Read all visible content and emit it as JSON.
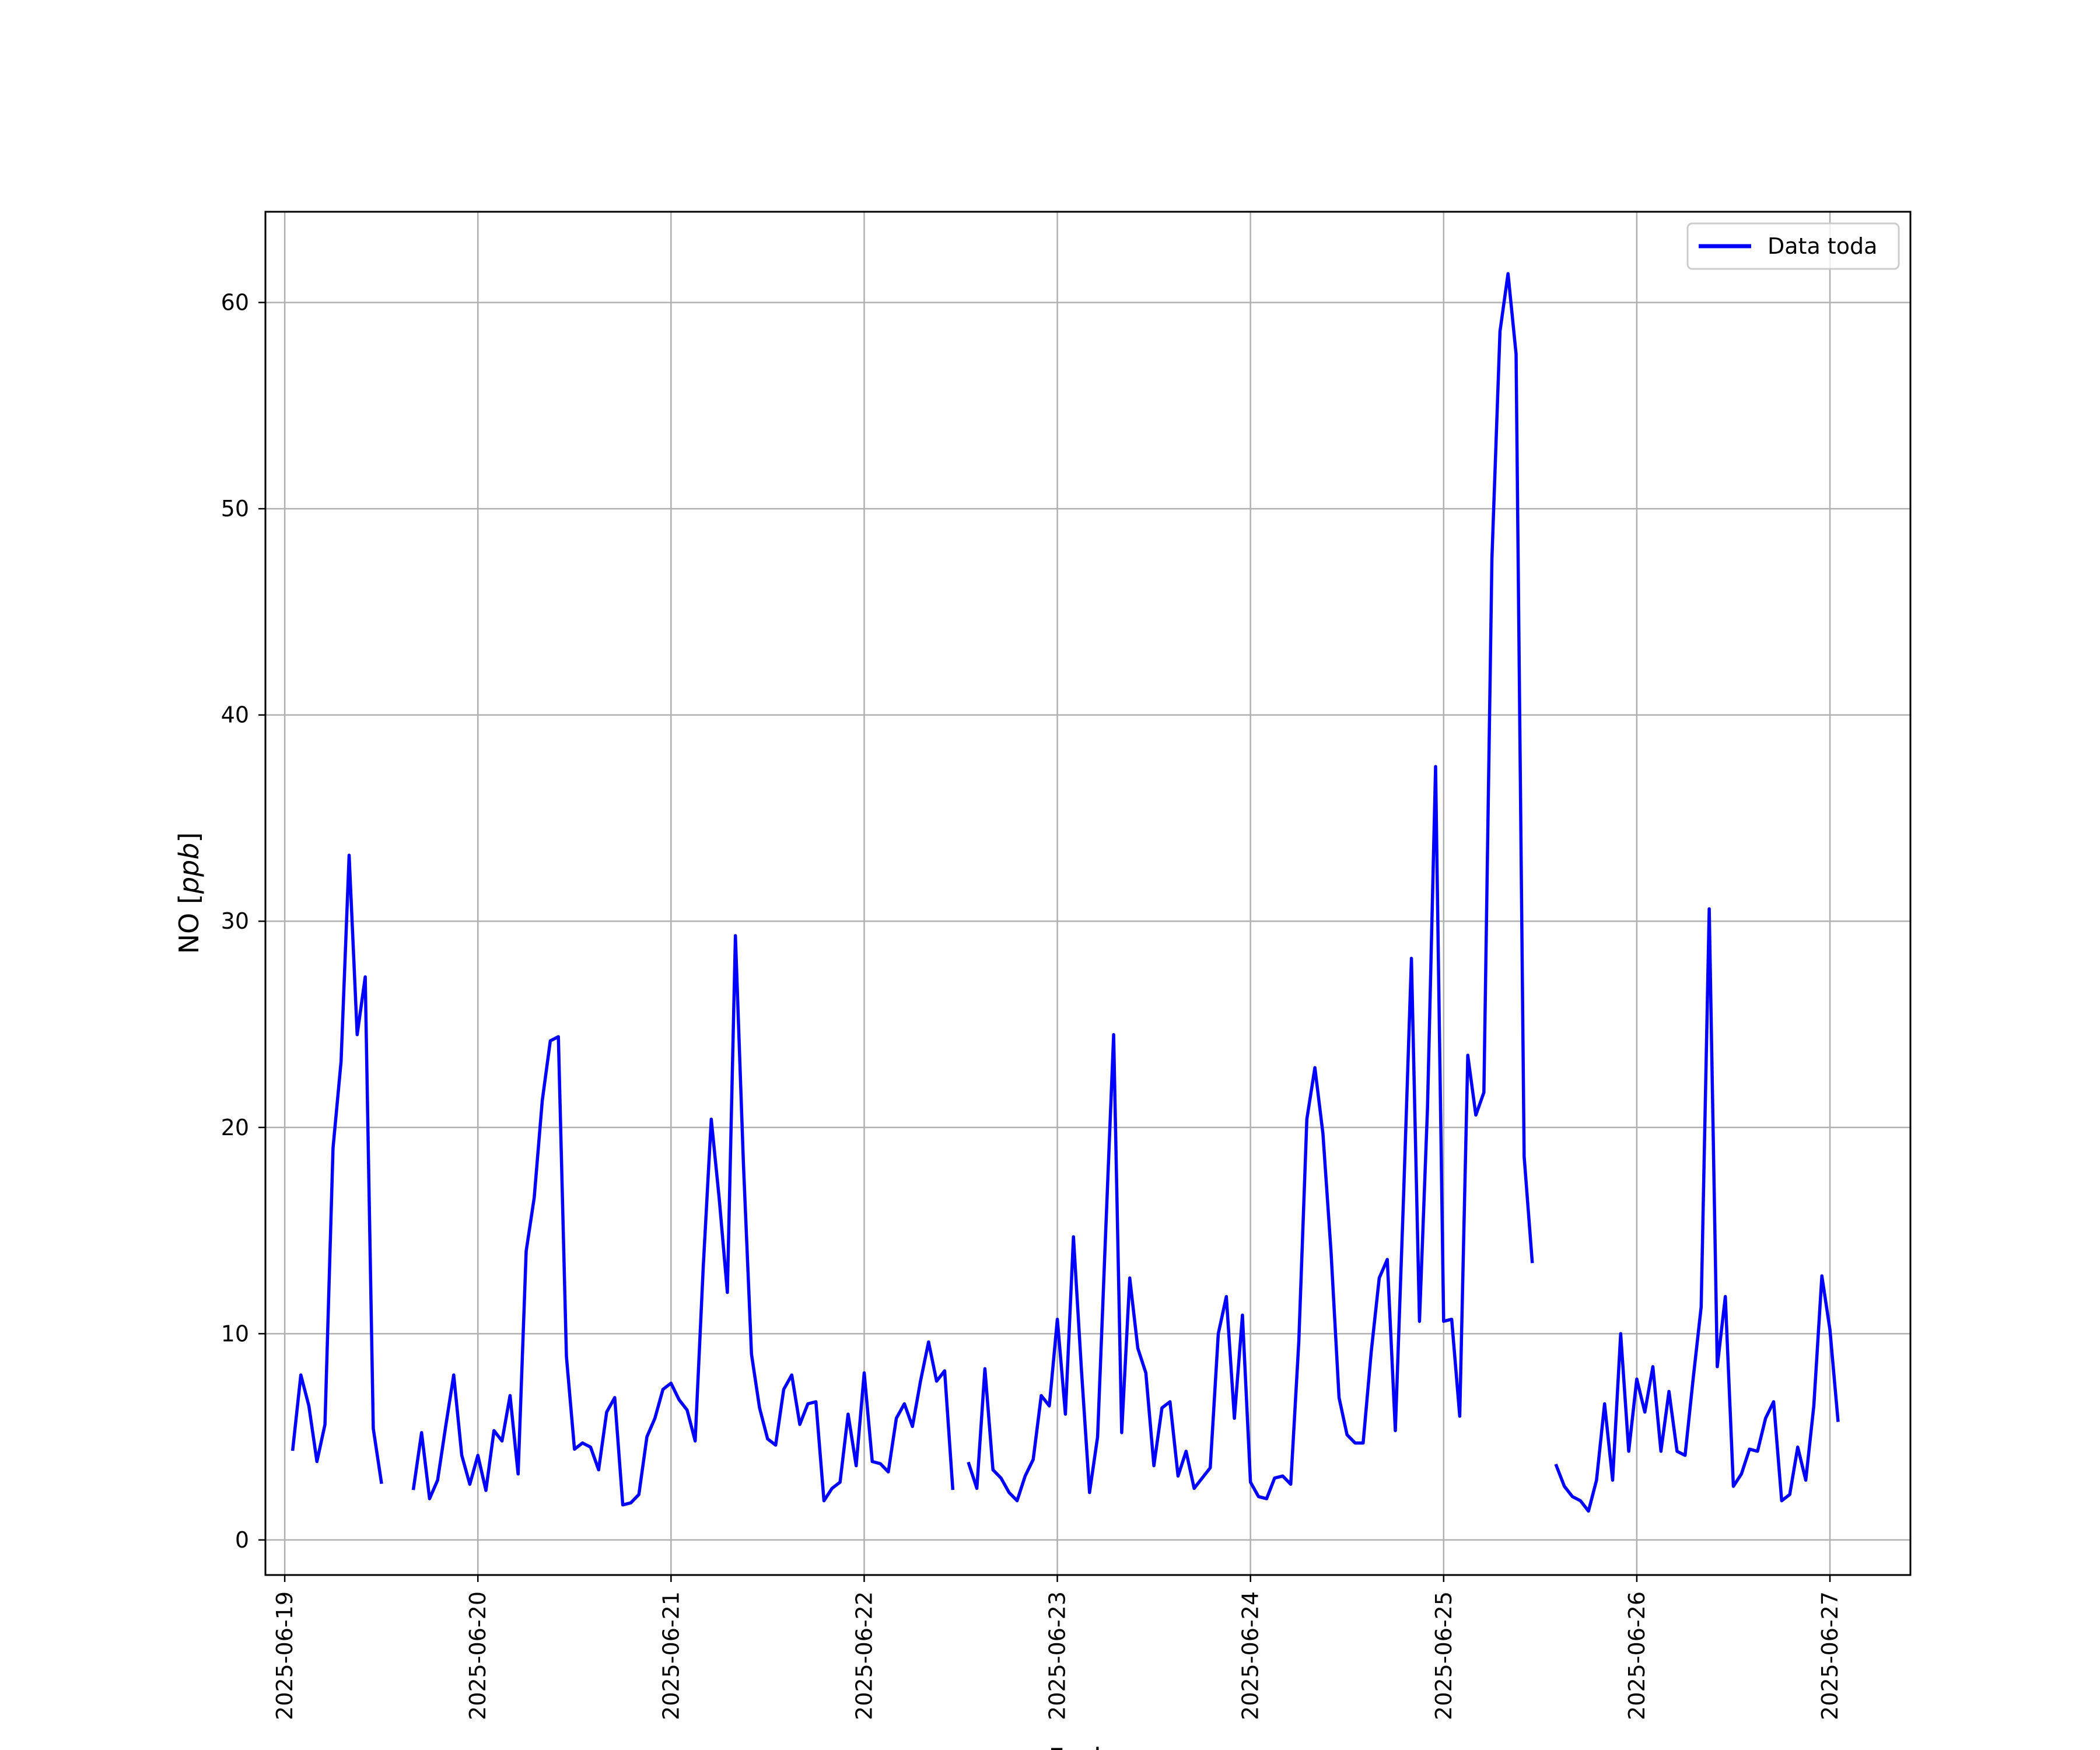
{
  "chart_data": {
    "type": "line",
    "xlabel": "Fecha",
    "ylabel_main": "NO",
    "ylabel_unit": "ppb",
    "ylim": [
      -1.7,
      64.4
    ],
    "xlim": [
      "2025-06-18T21:36",
      "2025-06-27T10:00"
    ],
    "yticks": [
      0,
      10,
      20,
      30,
      40,
      50,
      60
    ],
    "xticks": [
      "2025-06-19",
      "2025-06-20",
      "2025-06-21",
      "2025-06-22",
      "2025-06-23",
      "2025-06-24",
      "2025-06-25",
      "2025-06-26",
      "2025-06-27"
    ],
    "grid": true,
    "legend_position": "upper-right",
    "color": "#0000ff",
    "series": [
      {
        "name": "Data toda",
        "points": [
          [
            "2025-06-19T01:00",
            4.4
          ],
          [
            "2025-06-19T02:00",
            8.0
          ],
          [
            "2025-06-19T03:00",
            6.5
          ],
          [
            "2025-06-19T04:00",
            3.8
          ],
          [
            "2025-06-19T05:00",
            5.6
          ],
          [
            "2025-06-19T06:00",
            19.0
          ],
          [
            "2025-06-19T07:00",
            23.2
          ],
          [
            "2025-06-19T08:00",
            33.2
          ],
          [
            "2025-06-19T09:00",
            24.5
          ],
          [
            "2025-06-19T10:00",
            27.3
          ],
          [
            "2025-06-19T11:00",
            5.4
          ],
          [
            "2025-06-19T12:00",
            2.8
          ],
          [
            "2025-06-19T13:00",
            null
          ],
          [
            "2025-06-19T14:00",
            null
          ],
          [
            "2025-06-19T15:00",
            null
          ],
          [
            "2025-06-19T16:00",
            2.5
          ],
          [
            "2025-06-19T17:00",
            5.2
          ],
          [
            "2025-06-19T18:00",
            2.0
          ],
          [
            "2025-06-19T19:00",
            2.9
          ],
          [
            "2025-06-19T20:00",
            5.5
          ],
          [
            "2025-06-19T21:00",
            8.0
          ],
          [
            "2025-06-19T22:00",
            4.1
          ],
          [
            "2025-06-19T23:00",
            2.7
          ],
          [
            "2025-06-20T00:00",
            4.1
          ],
          [
            "2025-06-20T01:00",
            2.4
          ],
          [
            "2025-06-20T02:00",
            5.3
          ],
          [
            "2025-06-20T03:00",
            4.8
          ],
          [
            "2025-06-20T04:00",
            7.0
          ],
          [
            "2025-06-20T05:00",
            3.2
          ],
          [
            "2025-06-20T06:00",
            14.0
          ],
          [
            "2025-06-20T07:00",
            16.6
          ],
          [
            "2025-06-20T08:00",
            21.3
          ],
          [
            "2025-06-20T09:00",
            24.2
          ],
          [
            "2025-06-20T10:00",
            24.4
          ],
          [
            "2025-06-20T11:00",
            8.9
          ],
          [
            "2025-06-20T12:00",
            4.4
          ],
          [
            "2025-06-20T13:00",
            4.7
          ],
          [
            "2025-06-20T14:00",
            4.5
          ],
          [
            "2025-06-20T15:00",
            3.4
          ],
          [
            "2025-06-20T16:00",
            6.2
          ],
          [
            "2025-06-20T17:00",
            6.9
          ],
          [
            "2025-06-20T18:00",
            1.7
          ],
          [
            "2025-06-20T19:00",
            1.8
          ],
          [
            "2025-06-20T20:00",
            2.2
          ],
          [
            "2025-06-20T21:00",
            5.0
          ],
          [
            "2025-06-20T22:00",
            5.9
          ],
          [
            "2025-06-20T23:00",
            7.3
          ],
          [
            "2025-06-21T00:00",
            7.6
          ],
          [
            "2025-06-21T01:00",
            6.8
          ],
          [
            "2025-06-21T02:00",
            6.3
          ],
          [
            "2025-06-21T03:00",
            4.8
          ],
          [
            "2025-06-21T04:00",
            13.2
          ],
          [
            "2025-06-21T05:00",
            20.4
          ],
          [
            "2025-06-21T06:00",
            16.5
          ],
          [
            "2025-06-21T07:00",
            12.0
          ],
          [
            "2025-06-21T08:00",
            29.3
          ],
          [
            "2025-06-21T09:00",
            18.2
          ],
          [
            "2025-06-21T10:00",
            9.0
          ],
          [
            "2025-06-21T11:00",
            6.4
          ],
          [
            "2025-06-21T12:00",
            4.9
          ],
          [
            "2025-06-21T13:00",
            4.6
          ],
          [
            "2025-06-21T14:00",
            7.3
          ],
          [
            "2025-06-21T15:00",
            8.0
          ],
          [
            "2025-06-21T16:00",
            5.6
          ],
          [
            "2025-06-21T17:00",
            6.6
          ],
          [
            "2025-06-21T18:00",
            6.7
          ],
          [
            "2025-06-21T19:00",
            1.9
          ],
          [
            "2025-06-21T20:00",
            2.5
          ],
          [
            "2025-06-21T21:00",
            2.8
          ],
          [
            "2025-06-21T22:00",
            6.1
          ],
          [
            "2025-06-21T23:00",
            3.6
          ],
          [
            "2025-06-22T00:00",
            8.1
          ],
          [
            "2025-06-22T01:00",
            3.8
          ],
          [
            "2025-06-22T02:00",
            3.7
          ],
          [
            "2025-06-22T03:00",
            3.3
          ],
          [
            "2025-06-22T04:00",
            5.9
          ],
          [
            "2025-06-22T05:00",
            6.6
          ],
          [
            "2025-06-22T06:00",
            5.5
          ],
          [
            "2025-06-22T07:00",
            7.7
          ],
          [
            "2025-06-22T08:00",
            9.6
          ],
          [
            "2025-06-22T09:00",
            7.7
          ],
          [
            "2025-06-22T10:00",
            8.2
          ],
          [
            "2025-06-22T11:00",
            2.5
          ],
          [
            "2025-06-22T12:00",
            null
          ],
          [
            "2025-06-22T13:00",
            3.7
          ],
          [
            "2025-06-22T14:00",
            2.5
          ],
          [
            "2025-06-22T15:00",
            8.3
          ],
          [
            "2025-06-22T16:00",
            3.4
          ],
          [
            "2025-06-22T17:00",
            3.0
          ],
          [
            "2025-06-22T18:00",
            2.3
          ],
          [
            "2025-06-22T19:00",
            1.9
          ],
          [
            "2025-06-22T20:00",
            3.1
          ],
          [
            "2025-06-22T21:00",
            3.9
          ],
          [
            "2025-06-22T22:00",
            7.0
          ],
          [
            "2025-06-22T23:00",
            6.5
          ],
          [
            "2025-06-23T00:00",
            10.7
          ],
          [
            "2025-06-23T01:00",
            6.1
          ],
          [
            "2025-06-23T02:00",
            14.7
          ],
          [
            "2025-06-23T03:00",
            8.2
          ],
          [
            "2025-06-23T04:00",
            2.3
          ],
          [
            "2025-06-23T05:00",
            5.0
          ],
          [
            "2025-06-23T06:00",
            14.9
          ],
          [
            "2025-06-23T07:00",
            24.5
          ],
          [
            "2025-06-23T08:00",
            5.2
          ],
          [
            "2025-06-23T09:00",
            12.7
          ],
          [
            "2025-06-23T10:00",
            9.3
          ],
          [
            "2025-06-23T11:00",
            8.1
          ],
          [
            "2025-06-23T12:00",
            3.6
          ],
          [
            "2025-06-23T13:00",
            6.4
          ],
          [
            "2025-06-23T14:00",
            6.7
          ],
          [
            "2025-06-23T15:00",
            3.1
          ],
          [
            "2025-06-23T16:00",
            4.3
          ],
          [
            "2025-06-23T17:00",
            2.5
          ],
          [
            "2025-06-23T18:00",
            3.0
          ],
          [
            "2025-06-23T19:00",
            3.5
          ],
          [
            "2025-06-23T20:00",
            10.0
          ],
          [
            "2025-06-23T21:00",
            11.8
          ],
          [
            "2025-06-23T22:00",
            5.9
          ],
          [
            "2025-06-23T23:00",
            10.9
          ],
          [
            "2025-06-24T00:00",
            2.8
          ],
          [
            "2025-06-24T01:00",
            2.1
          ],
          [
            "2025-06-24T02:00",
            2.0
          ],
          [
            "2025-06-24T03:00",
            3.0
          ],
          [
            "2025-06-24T04:00",
            3.1
          ],
          [
            "2025-06-24T05:00",
            2.7
          ],
          [
            "2025-06-24T06:00",
            9.6
          ],
          [
            "2025-06-24T07:00",
            20.4
          ],
          [
            "2025-06-24T08:00",
            22.9
          ],
          [
            "2025-06-24T09:00",
            19.7
          ],
          [
            "2025-06-24T10:00",
            14.0
          ],
          [
            "2025-06-24T11:00",
            6.9
          ],
          [
            "2025-06-24T12:00",
            5.1
          ],
          [
            "2025-06-24T13:00",
            4.7
          ],
          [
            "2025-06-24T14:00",
            4.7
          ],
          [
            "2025-06-24T15:00",
            9.1
          ],
          [
            "2025-06-24T16:00",
            12.7
          ],
          [
            "2025-06-24T17:00",
            13.6
          ],
          [
            "2025-06-24T18:00",
            5.3
          ],
          [
            "2025-06-24T19:00",
            16.4
          ],
          [
            "2025-06-24T20:00",
            28.2
          ],
          [
            "2025-06-24T21:00",
            10.6
          ],
          [
            "2025-06-24T22:00",
            21.0
          ],
          [
            "2025-06-24T23:00",
            37.5
          ],
          [
            "2025-06-25T00:00",
            10.6
          ],
          [
            "2025-06-25T01:00",
            10.7
          ],
          [
            "2025-06-25T02:00",
            6.0
          ],
          [
            "2025-06-25T03:00",
            23.5
          ],
          [
            "2025-06-25T04:00",
            20.6
          ],
          [
            "2025-06-25T05:00",
            21.7
          ],
          [
            "2025-06-25T06:00",
            47.6
          ],
          [
            "2025-06-25T07:00",
            58.6
          ],
          [
            "2025-06-25T08:00",
            61.4
          ],
          [
            "2025-06-25T09:00",
            57.5
          ],
          [
            "2025-06-25T10:00",
            18.6
          ],
          [
            "2025-06-25T11:00",
            13.5
          ],
          [
            "2025-06-25T12:00",
            null
          ],
          [
            "2025-06-25T13:00",
            null
          ],
          [
            "2025-06-25T14:00",
            3.6
          ],
          [
            "2025-06-25T15:00",
            2.6
          ],
          [
            "2025-06-25T16:00",
            2.1
          ],
          [
            "2025-06-25T17:00",
            1.9
          ],
          [
            "2025-06-25T18:00",
            1.4
          ],
          [
            "2025-06-25T19:00",
            2.9
          ],
          [
            "2025-06-25T20:00",
            6.6
          ],
          [
            "2025-06-25T21:00",
            2.9
          ],
          [
            "2025-06-25T22:00",
            10.0
          ],
          [
            "2025-06-25T23:00",
            4.3
          ],
          [
            "2025-06-26T00:00",
            7.8
          ],
          [
            "2025-06-26T01:00",
            6.2
          ],
          [
            "2025-06-26T02:00",
            8.4
          ],
          [
            "2025-06-26T03:00",
            4.3
          ],
          [
            "2025-06-26T04:00",
            7.2
          ],
          [
            "2025-06-26T05:00",
            4.3
          ],
          [
            "2025-06-26T06:00",
            4.1
          ],
          [
            "2025-06-26T07:00",
            7.8
          ],
          [
            "2025-06-26T08:00",
            11.3
          ],
          [
            "2025-06-26T09:00",
            30.6
          ],
          [
            "2025-06-26T10:00",
            8.4
          ],
          [
            "2025-06-26T11:00",
            11.8
          ],
          [
            "2025-06-26T12:00",
            2.6
          ],
          [
            "2025-06-26T13:00",
            3.2
          ],
          [
            "2025-06-26T14:00",
            4.4
          ],
          [
            "2025-06-26T15:00",
            4.3
          ],
          [
            "2025-06-26T16:00",
            5.9
          ],
          [
            "2025-06-26T17:00",
            6.7
          ],
          [
            "2025-06-26T18:00",
            1.9
          ],
          [
            "2025-06-26T19:00",
            2.2
          ],
          [
            "2025-06-26T20:00",
            4.5
          ],
          [
            "2025-06-26T21:00",
            2.9
          ],
          [
            "2025-06-26T22:00",
            6.5
          ],
          [
            "2025-06-26T23:00",
            12.8
          ],
          [
            "2025-06-27T00:00",
            10.2
          ],
          [
            "2025-06-27T01:00",
            5.8
          ]
        ]
      }
    ]
  }
}
